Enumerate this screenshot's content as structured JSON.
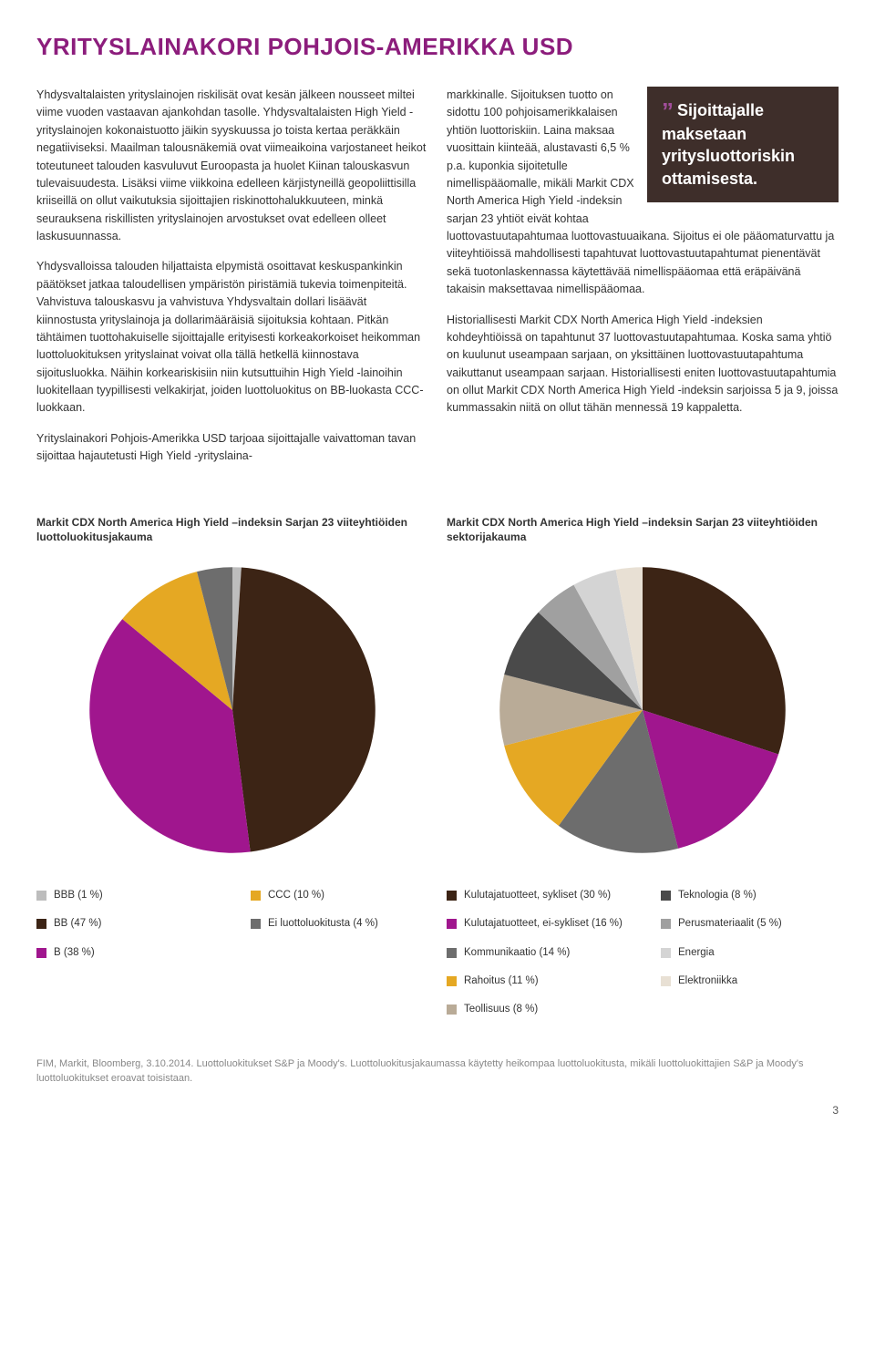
{
  "title": "YRITYSLAINAKORI POHJOIS-AMERIKKA USD",
  "col_left": {
    "p1": "Yhdysvaltalaisten yrityslainojen riskilisät ovat kesän jälkeen nousseet miltei viime vuoden vastaavan ajankohdan tasolle. Yhdysvaltalaisten High Yield -yrityslainojen kokonaistuotto jäikin syyskuussa jo toista kertaa peräkkäin negatiiviseksi. Maailman talousnäkemiä ovat viimeaikoina varjostaneet heikot toteutuneet talouden kasvuluvut Euroopasta ja huolet Kiinan talouskasvun tulevaisuudesta. Lisäksi viime viikkoina edelleen kärjistyneillä geopoliittisilla kriiseillä on ollut vaikutuksia sijoittajien riskinottohalukkuuteen, minkä seurauksena riskillisten yrityslainojen arvostukset ovat edelleen olleet laskusuunnassa.",
    "p2": "Yhdysvalloissa talouden hiljattaista elpymistä osoittavat keskuspankinkin päätökset jatkaa taloudellisen ympäristön piristämiä tukevia toimenpiteitä. Vahvistuva talouskasvu ja vahvistuva Yhdysvaltain dollari lisäävät kiinnostusta yrityslainoja ja dollarimääräisiä sijoituksia kohtaan. Pitkän tähtäimen tuottohakuiselle sijoittajalle erityisesti korkeakorkoiset heikomman luottoluokituksen yrityslainat voivat olla tällä hetkellä kiinnostava sijoitusluokka. Näihin korkeariskisiin niin kutsuttuihin High Yield -lainoihin luokitellaan tyypillisesti velkakirjat, joiden luottoluokitus on BB-luokasta CCC-luokkaan.",
    "p3": "Yrityslainakori Pohjois-Amerikka USD tarjoaa sijoittajalle vaivattoman tavan sijoittaa hajautetusti High Yield -yrityslaina-"
  },
  "callout": {
    "text": "Sijoittajalle maksetaan yritysluottoriskin ottamisesta."
  },
  "col_right": {
    "p1": "markkinalle. Sijoituksen tuotto on sidottu 100 pohjoisamerikkalaisen yhtiön luottoriskiin. Laina maksaa vuosittain kiinteää, alustavasti 6,5 % p.a. kuponkia sijoitetulle nimellispääomalle, mikäli Markit CDX North America High Yield -indeksin sarjan 23 yhtiöt eivät kohtaa luottovastuutapahtumaa luottovastuuaikana. Sijoitus ei ole pääomaturvattu ja viiteyhtiöissä mahdollisesti tapahtuvat luottovastuutapahtumat pienentävät sekä tuotonlaskennassa käytettävää nimellispääomaa että eräpäivänä takaisin maksettavaa nimellispääomaa.",
    "p2": "Historiallisesti Markit CDX North America High Yield -indeksien kohdeyhtiöissä on tapahtunut 37 luottovastuutapahtumaa. Koska sama yhtiö on kuulunut useampaan sarjaan, on yksittäinen luottovastuutapahtuma vaikuttanut useampaan sarjaan. Historiallisesti eniten luottovastuutapahtumia on ollut Markit CDX North America High Yield -indeksin sarjoissa 5 ja 9, joissa kummassakin niitä on ollut tähän mennessä 19 kappaletta."
  },
  "chart1": {
    "title": "Markit CDX North America High Yield –indeksin Sarjan 23 viiteyhtiöiden luottoluokitusjakauma",
    "type": "pie",
    "slices": [
      {
        "label": "BBB (1 %)",
        "value": 1,
        "color": "#bdbdbd"
      },
      {
        "label": "BB (47 %)",
        "value": 47,
        "color": "#3c2415"
      },
      {
        "label": "B (38 %)",
        "value": 38,
        "color": "#a0168e"
      },
      {
        "label": "CCC (10 %)",
        "value": 10,
        "color": "#e5a823"
      },
      {
        "label": "Ei luottoluokitusta (4 %)",
        "value": 4,
        "color": "#6d6d6d"
      }
    ],
    "legend_cols": [
      [
        {
          "label": "BBB (1 %)",
          "color": "#bdbdbd"
        },
        {
          "label": "BB (47 %)",
          "color": "#3c2415"
        },
        {
          "label": "B (38 %)",
          "color": "#a0168e"
        }
      ],
      [
        {
          "label": "CCC (10 %)",
          "color": "#e5a823"
        },
        {
          "label": "Ei luottoluokitusta (4 %)",
          "color": "#6d6d6d"
        }
      ]
    ]
  },
  "chart2": {
    "title": "Markit CDX North America High Yield –indeksin Sarjan 23 viiteyhtiöiden sektorijakauma",
    "type": "pie",
    "slices": [
      {
        "label": "Kulutajatuotteet, sykliset (30 %)",
        "value": 30,
        "color": "#3c2415"
      },
      {
        "label": "Kulutajatuotteet, ei-sykliset (16 %)",
        "value": 16,
        "color": "#a0168e"
      },
      {
        "label": "Kommunikaatio (14 %)",
        "value": 14,
        "color": "#6d6d6d"
      },
      {
        "label": "Rahoitus (11 %)",
        "value": 11,
        "color": "#e5a823"
      },
      {
        "label": "Teollisuus (8 %)",
        "value": 8,
        "color": "#b9ab97"
      },
      {
        "label": "Teknologia (8 %)",
        "value": 8,
        "color": "#4a4a4a"
      },
      {
        "label": "Perusmateriaalit (5 %)",
        "value": 5,
        "color": "#a0a0a0"
      },
      {
        "label": "Energia",
        "value": 5,
        "color": "#d4d4d4"
      },
      {
        "label": "Elektroniikka",
        "value": 3,
        "color": "#e8e0d4"
      }
    ],
    "legend_cols": [
      [
        {
          "label": "Kulutajatuotteet, sykliset (30 %)",
          "color": "#3c2415"
        },
        {
          "label": "Kulutajatuotteet, ei-sykliset (16 %)",
          "color": "#a0168e"
        },
        {
          "label": "Kommunikaatio (14 %)",
          "color": "#6d6d6d"
        },
        {
          "label": "Rahoitus (11 %)",
          "color": "#e5a823"
        },
        {
          "label": "Teollisuus (8 %)",
          "color": "#b9ab97"
        }
      ],
      [
        {
          "label": "Teknologia (8 %)",
          "color": "#4a4a4a"
        },
        {
          "label": "Perusmateriaalit (5 %)",
          "color": "#a0a0a0"
        },
        {
          "label": "Energia",
          "color": "#d4d4d4"
        },
        {
          "label": "Elektroniikka",
          "color": "#e8e0d4"
        }
      ]
    ]
  },
  "footnote": "FIM, Markit, Bloomberg, 3.10.2014. Luottoluokitukset S&P ja Moody's. Luottoluokitusjakaumassa käytetty heikompaa luottoluokitusta, mikäli luottoluokittajien S&P ja Moody's luottoluokitukset eroavat toisistaan.",
  "pagenum": "3"
}
